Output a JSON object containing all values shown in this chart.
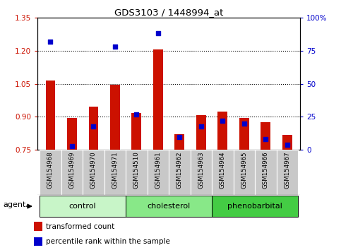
{
  "title": "GDS3103 / 1448994_at",
  "samples": [
    "GSM154968",
    "GSM154969",
    "GSM154970",
    "GSM154971",
    "GSM154510",
    "GSM154961",
    "GSM154962",
    "GSM154963",
    "GSM154964",
    "GSM154965",
    "GSM154966",
    "GSM154967"
  ],
  "groups": [
    {
      "name": "control",
      "indices": [
        0,
        1,
        2,
        3
      ],
      "color": "#c8f5c8"
    },
    {
      "name": "cholesterol",
      "indices": [
        4,
        5,
        6,
        7
      ],
      "color": "#88e888"
    },
    {
      "name": "phenobarbital",
      "indices": [
        8,
        9,
        10,
        11
      ],
      "color": "#44cc44"
    }
  ],
  "transformed_count": [
    1.065,
    0.895,
    0.945,
    1.047,
    0.918,
    1.205,
    0.823,
    0.908,
    0.925,
    0.895,
    0.875,
    0.82
  ],
  "percentile_rank": [
    82,
    3,
    18,
    78,
    27,
    88,
    10,
    18,
    22,
    20,
    8,
    4
  ],
  "bar_base": 0.75,
  "ylim_left": [
    0.75,
    1.35
  ],
  "ylim_right": [
    0,
    100
  ],
  "yticks_left": [
    0.75,
    0.9,
    1.05,
    1.2,
    1.35
  ],
  "yticks_right": [
    0,
    25,
    50,
    75,
    100
  ],
  "ytick_labels_right": [
    "0",
    "25",
    "50",
    "75",
    "100%"
  ],
  "bar_color_red": "#cc1100",
  "bar_color_blue": "#0000cc",
  "agent_label": "agent",
  "legend_transformed": "transformed count",
  "legend_percentile": "percentile rank within the sample",
  "bar_width": 0.45
}
